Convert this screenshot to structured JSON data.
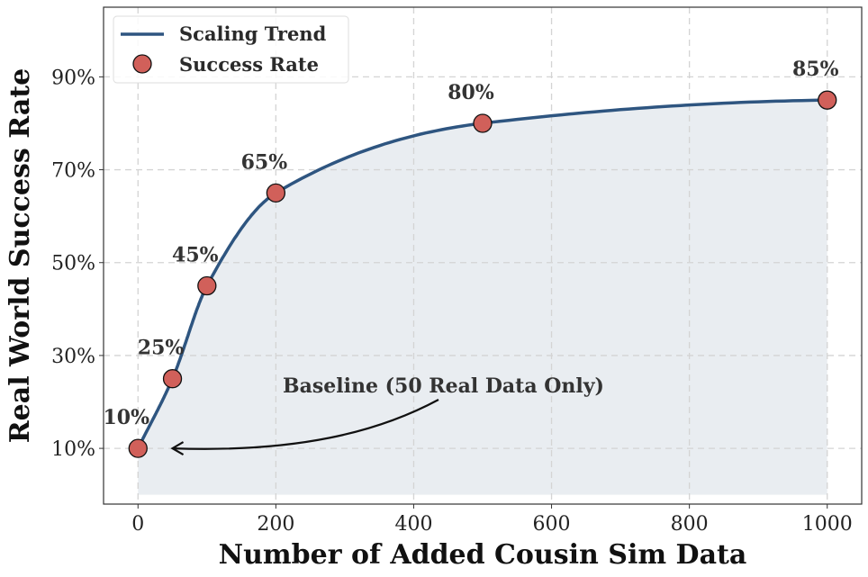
{
  "chart_data": {
    "type": "line",
    "title": "",
    "xlabel": "Number of Added Cousin Sim Data",
    "ylabel": "Real World Success Rate",
    "xlim": [
      -50,
      1050
    ],
    "ylim": [
      -2,
      105
    ],
    "xticks": [
      0,
      200,
      400,
      600,
      800,
      1000
    ],
    "xtick_labels": [
      "0",
      "200",
      "400",
      "600",
      "800",
      "1000"
    ],
    "yticks": [
      10,
      30,
      50,
      70,
      90
    ],
    "ytick_labels": [
      "10%",
      "30%",
      "50%",
      "70%",
      "90%"
    ],
    "grid": true,
    "legend_position": "top-left",
    "series": [
      {
        "name": "Scaling Trend",
        "kind": "smooth-line",
        "color": "#2e5580",
        "fill_color": "#e9edf1",
        "fill_to": 0
      },
      {
        "name": "Success Rate",
        "kind": "scatter",
        "color": "#d1605a",
        "x": [
          0,
          50,
          100,
          200,
          500,
          1000
        ],
        "y": [
          10,
          25,
          45,
          65,
          80,
          85
        ],
        "labels": [
          "10%",
          "25%",
          "45%",
          "65%",
          "80%",
          "85%"
        ]
      }
    ],
    "annotation": {
      "text": "Baseline (50 Real Data Only)",
      "arrow_to": [
        50,
        10
      ]
    }
  }
}
